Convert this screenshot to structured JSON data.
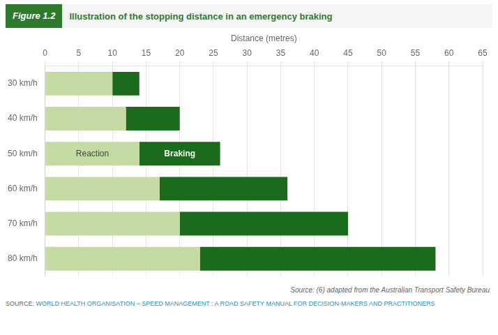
{
  "chart_data": {
    "type": "bar",
    "orientation": "horizontal",
    "stacked": true,
    "title": [
      "Figure 1.2",
      "Illustration of the stopping distance in an emergency braking"
    ],
    "x_label": "Distance (metres)",
    "categories": [
      "30 km/h",
      "40 km/h",
      "50 km/h",
      "60 km/h",
      "70 km/h",
      "80 km/h"
    ],
    "series": [
      {
        "name": "Reaction",
        "color": "#c5dba4",
        "values": [
          10,
          12,
          14,
          17,
          20,
          23
        ]
      },
      {
        "name": "Braking",
        "color": "#1c6b1c",
        "values": [
          4,
          8,
          12,
          19,
          25,
          35
        ]
      }
    ],
    "xlim": [
      0,
      65
    ],
    "xticks": [
      0,
      5,
      10,
      15,
      20,
      25,
      30,
      35,
      40,
      45,
      50,
      55,
      60,
      65
    ],
    "grid": true,
    "annotations": [
      {
        "text": "Reaction",
        "category": "50 km/h",
        "series": "Reaction"
      },
      {
        "text": "Braking",
        "category": "50 km/h",
        "series": "Braking"
      },
      {
        "text": "Source: (6) adapted from the Australian Transport Safety Bureau"
      },
      {
        "text": "SOURCE: "
      },
      {
        "text": "WORLD HEALTH ORGANISATION – SPEED MANAGEMENT : A ROAD SAFETY MANUAL FOR DECISION-MAKERS AND PRACTITIONERS"
      }
    ]
  }
}
